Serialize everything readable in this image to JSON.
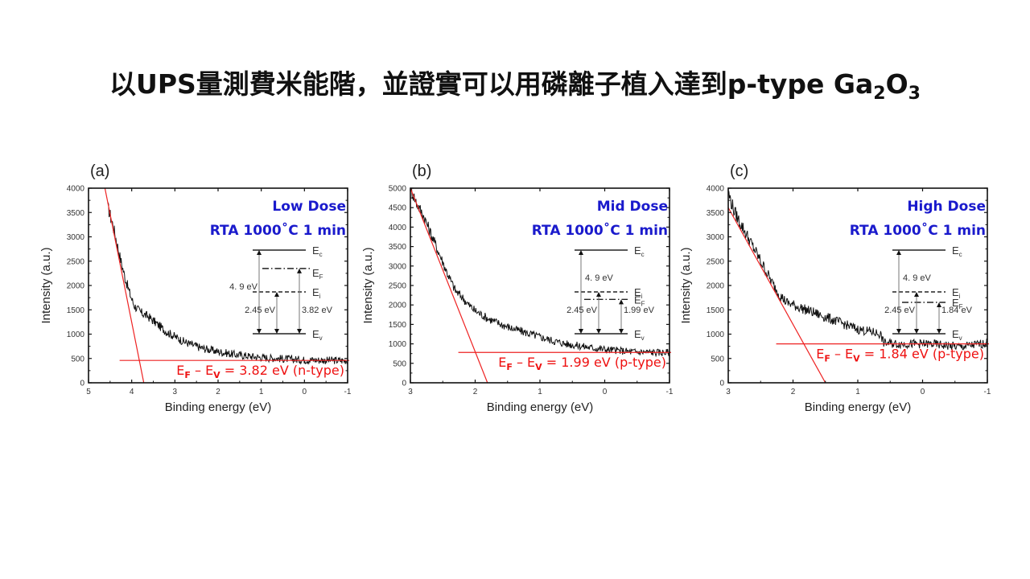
{
  "slide": {
    "title_main": "以UPS量測費米能階，並證實可以用磷離子植入達到p-type Ga",
    "title_sub1": "2",
    "title_o": "O",
    "title_sub2": "3"
  },
  "chart_data": [
    {
      "type": "line",
      "panel": "(a)",
      "title": "Low Dose",
      "subtitle": "RTA 1000˚C 1 min",
      "xlabel": "Binding energy (eV)",
      "ylabel": "Intensity (a.u.)",
      "xlim": [
        5,
        -1
      ],
      "ylim": [
        0,
        4000
      ],
      "xticks": [
        "5",
        "4",
        "3",
        "2",
        "1",
        "0",
        "-1"
      ],
      "yticks": [
        "0",
        "500",
        "1000",
        "1500",
        "2000",
        "2500",
        "3000",
        "3500",
        "4000"
      ],
      "xtick_values": [
        5,
        4,
        3,
        2,
        1,
        0,
        -1
      ],
      "ytick_values": [
        0,
        500,
        1000,
        1500,
        2000,
        2500,
        3000,
        3500,
        4000
      ],
      "spectrum_points": [
        [
          4.55,
          3600
        ],
        [
          4.45,
          3300
        ],
        [
          4.35,
          2900
        ],
        [
          4.25,
          2500
        ],
        [
          4.15,
          2150
        ],
        [
          4.05,
          1850
        ],
        [
          3.95,
          1600
        ],
        [
          3.8,
          1450
        ],
        [
          3.6,
          1350
        ],
        [
          3.4,
          1200
        ],
        [
          3.2,
          1050
        ],
        [
          3.0,
          950
        ],
        [
          2.8,
          850
        ],
        [
          2.6,
          780
        ],
        [
          2.4,
          720
        ],
        [
          2.2,
          680
        ],
        [
          2.0,
          640
        ],
        [
          1.8,
          610
        ],
        [
          1.6,
          580
        ],
        [
          1.4,
          560
        ],
        [
          1.2,
          540
        ],
        [
          1.0,
          520
        ],
        [
          0.8,
          510
        ],
        [
          0.6,
          500
        ],
        [
          0.4,
          490
        ],
        [
          0.2,
          480
        ],
        [
          0.0,
          470
        ],
        [
          -0.2,
          470
        ],
        [
          -0.4,
          465
        ],
        [
          -0.6,
          460
        ],
        [
          -0.8,
          460
        ],
        [
          -1.0,
          460
        ]
      ],
      "noise_amplitude": 120,
      "fit_line": {
        "x": [
          4.62,
          3.72
        ],
        "y": [
          4000,
          0
        ]
      },
      "baseline": {
        "x_start": 4.28,
        "x_end": -1,
        "y": 460
      },
      "band_diagram": {
        "levels": [
          {
            "name": "Ec",
            "symbol": "E",
            "sub": "c",
            "style": "solid"
          },
          {
            "name": "EF",
            "symbol": "E",
            "sub": "F",
            "style": "dashdot"
          },
          {
            "name": "Ei",
            "symbol": "E",
            "sub": "i",
            "style": "dashed"
          },
          {
            "name": "Ev",
            "symbol": "E",
            "sub": "v",
            "style": "solid"
          }
        ],
        "gap_label": "4. 9 eV",
        "ei_label": "2.45 eV",
        "ef_label": "3.82 eV",
        "ef_position_fraction": 0.78
      },
      "result": {
        "prefix_e": "E",
        "sub_f": "F",
        "dash": " – ",
        "sub_v": "V",
        "value": " = 3.82 eV (n-type)"
      }
    },
    {
      "type": "line",
      "panel": "(b)",
      "title": "Mid Dose",
      "subtitle": "RTA 1000˚C 1 min",
      "xlabel": "Binding energy (eV)",
      "ylabel": "Intensity (a.u.)",
      "xlim": [
        3,
        -1
      ],
      "ylim": [
        0,
        5000
      ],
      "xticks": [
        "3",
        "2",
        "1",
        "0",
        "-1"
      ],
      "yticks": [
        "0",
        "500",
        "1000",
        "1500",
        "2000",
        "2500",
        "3000",
        "3500",
        "4000",
        "4500",
        "5000"
      ],
      "xtick_values": [
        3,
        2,
        1,
        0,
        -1
      ],
      "ytick_values": [
        0,
        500,
        1000,
        1500,
        2000,
        2500,
        3000,
        3500,
        4000,
        4500,
        5000
      ],
      "spectrum_points": [
        [
          3.0,
          5000
        ],
        [
          2.9,
          4600
        ],
        [
          2.8,
          4300
        ],
        [
          2.7,
          3900
        ],
        [
          2.6,
          3500
        ],
        [
          2.5,
          3100
        ],
        [
          2.4,
          2700
        ],
        [
          2.3,
          2350
        ],
        [
          2.2,
          2200
        ],
        [
          2.1,
          2000
        ],
        [
          2.0,
          1850
        ],
        [
          1.9,
          1750
        ],
        [
          1.8,
          1650
        ],
        [
          1.6,
          1500
        ],
        [
          1.4,
          1380
        ],
        [
          1.2,
          1280
        ],
        [
          1.0,
          1180
        ],
        [
          0.8,
          1080
        ],
        [
          0.6,
          1000
        ],
        [
          0.4,
          950
        ],
        [
          0.2,
          900
        ],
        [
          0.0,
          860
        ],
        [
          -0.2,
          830
        ],
        [
          -0.4,
          800
        ],
        [
          -0.6,
          790
        ],
        [
          -0.8,
          780
        ],
        [
          -1.0,
          780
        ]
      ],
      "noise_amplitude": 140,
      "fit_line": {
        "x": [
          3.0,
          1.81
        ],
        "y": [
          5000,
          0
        ]
      },
      "baseline": {
        "x_start": 2.26,
        "x_end": -1,
        "y": 780
      },
      "band_diagram": {
        "levels": [
          {
            "name": "Ec",
            "symbol": "E",
            "sub": "c",
            "style": "solid"
          },
          {
            "name": "Ei",
            "symbol": "E",
            "sub": "i",
            "style": "dashed"
          },
          {
            "name": "EF",
            "symbol": "E",
            "sub": "F",
            "style": "dashdot"
          },
          {
            "name": "Ev",
            "symbol": "E",
            "sub": "v",
            "style": "solid"
          }
        ],
        "gap_label": "4. 9 eV",
        "ei_label": "2.45 eV",
        "ef_label": "1.99 eV",
        "ef_position_fraction": 0.41
      },
      "result": {
        "prefix_e": "E",
        "sub_f": "F",
        "dash": " – ",
        "sub_v": "V",
        "value": " = 1.99 eV (p-type)"
      }
    },
    {
      "type": "line",
      "panel": "(c)",
      "title": "High Dose",
      "subtitle": "RTA 1000˚C 1 min",
      "xlabel": "Binding energy (eV)",
      "ylabel": "Intensity (a.u.)",
      "xlim": [
        3,
        -1
      ],
      "ylim": [
        0,
        4000
      ],
      "xticks": [
        "3",
        "2",
        "1",
        "0",
        "-1"
      ],
      "yticks": [
        "0",
        "500",
        "1000",
        "1500",
        "2000",
        "2500",
        "3000",
        "3500",
        "4000"
      ],
      "xtick_values": [
        3,
        2,
        1,
        0,
        -1
      ],
      "ytick_values": [
        0,
        500,
        1000,
        1500,
        2000,
        2500,
        3000,
        3500,
        4000
      ],
      "spectrum_points": [
        [
          3.0,
          3900
        ],
        [
          2.9,
          3500
        ],
        [
          2.8,
          3250
        ],
        [
          2.7,
          3000
        ],
        [
          2.6,
          2750
        ],
        [
          2.5,
          2500
        ],
        [
          2.4,
          2250
        ],
        [
          2.3,
          2000
        ],
        [
          2.2,
          1800
        ],
        [
          2.1,
          1650
        ],
        [
          2.0,
          1600
        ],
        [
          1.9,
          1550
        ],
        [
          1.8,
          1500
        ],
        [
          1.6,
          1400
        ],
        [
          1.4,
          1300
        ],
        [
          1.2,
          1200
        ],
        [
          1.0,
          1100
        ],
        [
          0.8,
          1050
        ],
        [
          0.65,
          1000
        ],
        [
          0.6,
          820
        ],
        [
          0.4,
          800
        ],
        [
          0.2,
          800
        ],
        [
          0.0,
          800
        ],
        [
          -0.2,
          790
        ],
        [
          -0.4,
          760
        ],
        [
          -0.6,
          740
        ],
        [
          -0.8,
          780
        ],
        [
          -1.0,
          820
        ]
      ],
      "noise_amplitude": 130,
      "fit_line": {
        "x": [
          3.0,
          1.5
        ],
        "y": [
          3600,
          0
        ]
      },
      "baseline": {
        "x_start": 2.26,
        "x_end": -1,
        "y": 800
      },
      "band_diagram": {
        "levels": [
          {
            "name": "Ec",
            "symbol": "E",
            "sub": "c",
            "style": "solid"
          },
          {
            "name": "Ei",
            "symbol": "E",
            "sub": "i",
            "style": "dashed"
          },
          {
            "name": "EF",
            "symbol": "E",
            "sub": "F",
            "style": "dashdot"
          },
          {
            "name": "Ev",
            "symbol": "E",
            "sub": "v",
            "style": "solid"
          }
        ],
        "gap_label": "4. 9 eV",
        "ei_label": "2.45 eV",
        "ef_label": "1.84 eV",
        "ef_position_fraction": 0.375
      },
      "result": {
        "prefix_e": "E",
        "sub_f": "F",
        "dash": " – ",
        "sub_v": "V",
        "value": " = 1.84 eV (p-type)"
      }
    }
  ]
}
